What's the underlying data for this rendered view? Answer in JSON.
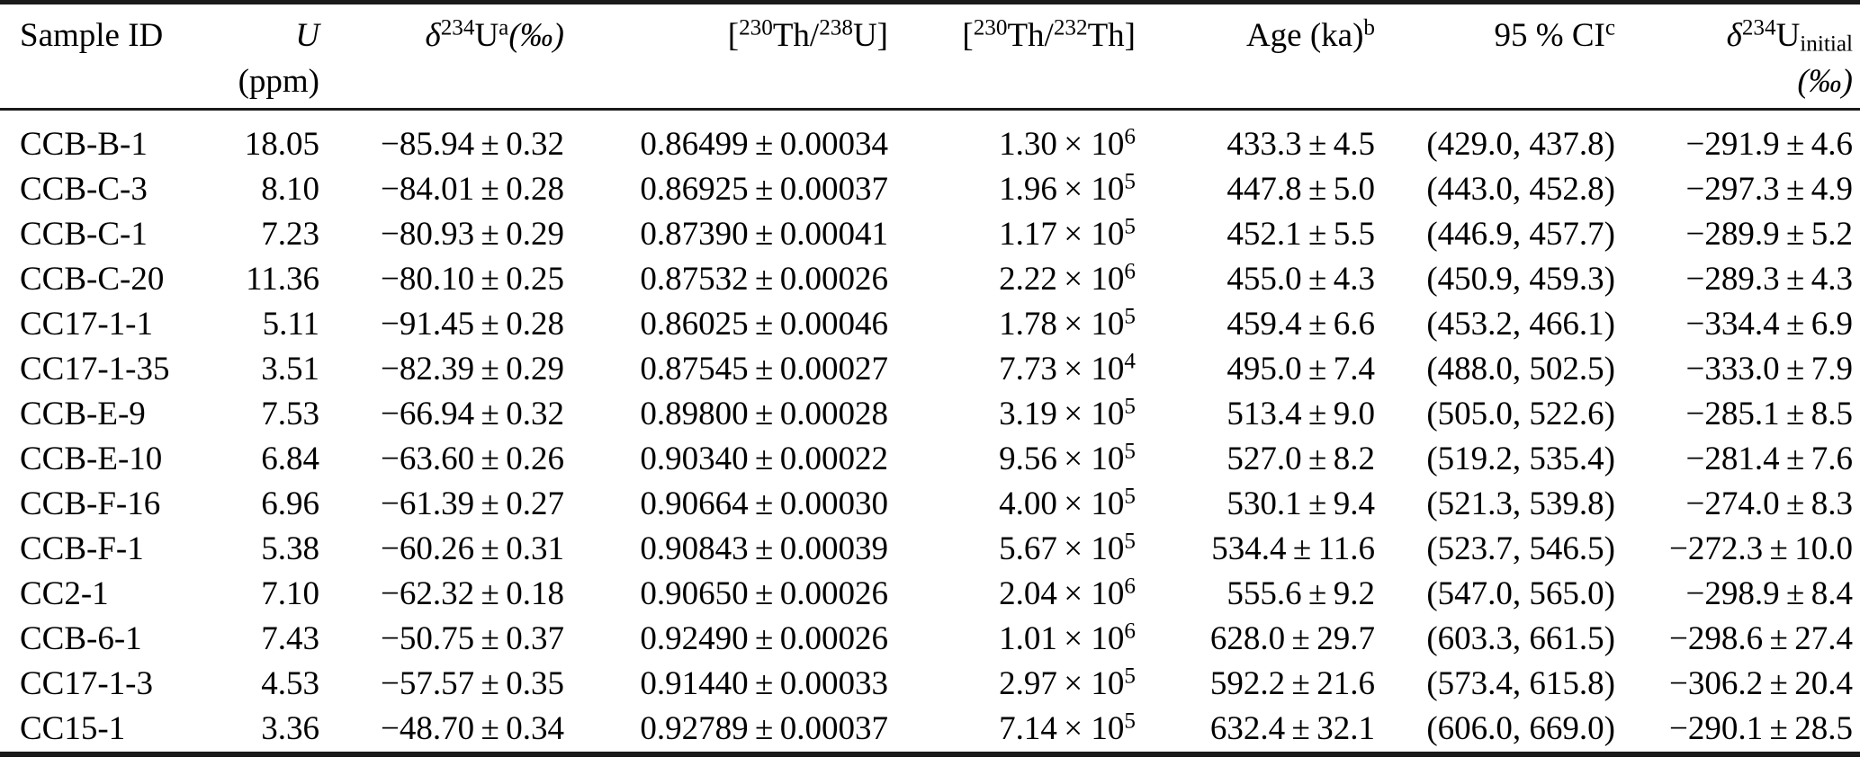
{
  "colors": {
    "background": "#ffffff",
    "text": "#000000",
    "rule": "#1a1a1a"
  },
  "table": {
    "columns": [
      {
        "id": "sample-id",
        "align": "left",
        "header": [
          {
            "t": "p",
            "v": "Sample ID"
          }
        ]
      },
      {
        "id": "u-ppm",
        "align": "right",
        "header": [
          {
            "t": "i",
            "v": "U"
          },
          {
            "t": "br"
          },
          {
            "t": "p",
            "v": "(ppm)"
          }
        ]
      },
      {
        "id": "d234u",
        "align": "right",
        "header": [
          {
            "t": "i",
            "v": "δ"
          },
          {
            "t": "sup",
            "v": "234"
          },
          {
            "t": "p",
            "v": "U"
          },
          {
            "t": "sup",
            "v": "a"
          },
          {
            "t": "i",
            "v": "(‰)"
          }
        ]
      },
      {
        "id": "th230-u238",
        "align": "right",
        "header": [
          {
            "t": "p",
            "v": "["
          },
          {
            "t": "sup",
            "v": "230"
          },
          {
            "t": "p",
            "v": "Th/"
          },
          {
            "t": "sup",
            "v": "238"
          },
          {
            "t": "p",
            "v": "U]"
          }
        ]
      },
      {
        "id": "th230-th232",
        "align": "right",
        "header": [
          {
            "t": "p",
            "v": "["
          },
          {
            "t": "sup",
            "v": "230"
          },
          {
            "t": "p",
            "v": "Th/"
          },
          {
            "t": "sup",
            "v": "232"
          },
          {
            "t": "p",
            "v": "Th]"
          }
        ]
      },
      {
        "id": "age-ka",
        "align": "right",
        "header": [
          {
            "t": "p",
            "v": "Age (ka)"
          },
          {
            "t": "sup",
            "v": "b"
          }
        ]
      },
      {
        "id": "ci-95",
        "align": "right",
        "header": [
          {
            "t": "p",
            "v": "95 % CI"
          },
          {
            "t": "sup",
            "v": "c"
          }
        ]
      },
      {
        "id": "d234u-initial",
        "align": "right",
        "header": [
          {
            "t": "i",
            "v": "δ"
          },
          {
            "t": "sup",
            "v": "234"
          },
          {
            "t": "p",
            "v": "U"
          },
          {
            "t": "sub",
            "v": "initial"
          },
          {
            "t": "br"
          },
          {
            "t": "i",
            "v": "(‰)"
          }
        ]
      }
    ],
    "rows": [
      [
        "CCB-B-1",
        "18.05",
        "−85.94 ± 0.32",
        "0.86499 ± 0.00034",
        [
          {
            "t": "p",
            "v": "1.30 × 10"
          },
          {
            "t": "sup",
            "v": "6"
          }
        ],
        "433.3 ± 4.5",
        "(429.0, 437.8)",
        "−291.9 ± 4.6"
      ],
      [
        "CCB-C-3",
        "8.10",
        "−84.01 ± 0.28",
        "0.86925 ± 0.00037",
        [
          {
            "t": "p",
            "v": "1.96 × 10"
          },
          {
            "t": "sup",
            "v": "5"
          }
        ],
        "447.8 ± 5.0",
        "(443.0, 452.8)",
        "−297.3 ± 4.9"
      ],
      [
        "CCB-C-1",
        "7.23",
        "−80.93 ± 0.29",
        "0.87390 ± 0.00041",
        [
          {
            "t": "p",
            "v": "1.17 × 10"
          },
          {
            "t": "sup",
            "v": "5"
          }
        ],
        "452.1 ± 5.5",
        "(446.9, 457.7)",
        "−289.9 ± 5.2"
      ],
      [
        "CCB-C-20",
        "11.36",
        "−80.10 ± 0.25",
        "0.87532 ± 0.00026",
        [
          {
            "t": "p",
            "v": "2.22 × 10"
          },
          {
            "t": "sup",
            "v": "6"
          }
        ],
        "455.0 ± 4.3",
        "(450.9, 459.3)",
        "−289.3 ± 4.3"
      ],
      [
        "CC17-1-1",
        "5.11",
        "−91.45 ± 0.28",
        "0.86025 ± 0.00046",
        [
          {
            "t": "p",
            "v": "1.78 × 10"
          },
          {
            "t": "sup",
            "v": "5"
          }
        ],
        "459.4 ± 6.6",
        "(453.2, 466.1)",
        "−334.4 ± 6.9"
      ],
      [
        "CC17-1-35",
        "3.51",
        "−82.39 ± 0.29",
        "0.87545 ± 0.00027",
        [
          {
            "t": "p",
            "v": "7.73 × 10"
          },
          {
            "t": "sup",
            "v": "4"
          }
        ],
        "495.0 ± 7.4",
        "(488.0, 502.5)",
        "−333.0 ± 7.9"
      ],
      [
        "CCB-E-9",
        "7.53",
        "−66.94 ± 0.32",
        "0.89800 ± 0.00028",
        [
          {
            "t": "p",
            "v": "3.19 × 10"
          },
          {
            "t": "sup",
            "v": "5"
          }
        ],
        "513.4 ± 9.0",
        "(505.0, 522.6)",
        "−285.1 ± 8.5"
      ],
      [
        "CCB-E-10",
        "6.84",
        "−63.60 ± 0.26",
        "0.90340 ± 0.00022",
        [
          {
            "t": "p",
            "v": "9.56 × 10"
          },
          {
            "t": "sup",
            "v": "5"
          }
        ],
        "527.0 ± 8.2",
        "(519.2, 535.4)",
        "−281.4 ± 7.6"
      ],
      [
        "CCB-F-16",
        "6.96",
        "−61.39 ± 0.27",
        "0.90664 ± 0.00030",
        [
          {
            "t": "p",
            "v": "4.00 × 10"
          },
          {
            "t": "sup",
            "v": "5"
          }
        ],
        "530.1 ± 9.4",
        "(521.3, 539.8)",
        "−274.0 ± 8.3"
      ],
      [
        "CCB-F-1",
        "5.38",
        "−60.26 ± 0.31",
        "0.90843 ± 0.00039",
        [
          {
            "t": "p",
            "v": "5.67 × 10"
          },
          {
            "t": "sup",
            "v": "5"
          }
        ],
        "534.4 ± 11.6",
        "(523.7, 546.5)",
        "−272.3 ± 10.0"
      ],
      [
        "CC2-1",
        "7.10",
        "−62.32 ± 0.18",
        "0.90650 ± 0.00026",
        [
          {
            "t": "p",
            "v": "2.04 × 10"
          },
          {
            "t": "sup",
            "v": "6"
          }
        ],
        "555.6 ± 9.2",
        "(547.0, 565.0)",
        "−298.9 ± 8.4"
      ],
      [
        "CCB-6-1",
        "7.43",
        "−50.75 ± 0.37",
        "0.92490 ± 0.00026",
        [
          {
            "t": "p",
            "v": "1.01 × 10"
          },
          {
            "t": "sup",
            "v": "6"
          }
        ],
        "628.0 ± 29.7",
        "(603.3, 661.5)",
        "−298.6 ± 27.4"
      ],
      [
        "CC17-1-3",
        "4.53",
        "−57.57 ± 0.35",
        "0.91440 ± 0.00033",
        [
          {
            "t": "p",
            "v": "2.97 × 10"
          },
          {
            "t": "sup",
            "v": "5"
          }
        ],
        "592.2 ± 21.6",
        "(573.4, 615.8)",
        "−306.2 ± 20.4"
      ],
      [
        "CC15-1",
        "3.36",
        "−48.70 ± 0.34",
        "0.92789 ± 0.00037",
        [
          {
            "t": "p",
            "v": "7.14 × 10"
          },
          {
            "t": "sup",
            "v": "5"
          }
        ],
        "632.4 ± 32.1",
        "(606.0, 669.0)",
        "−290.1 ± 28.5"
      ]
    ]
  }
}
